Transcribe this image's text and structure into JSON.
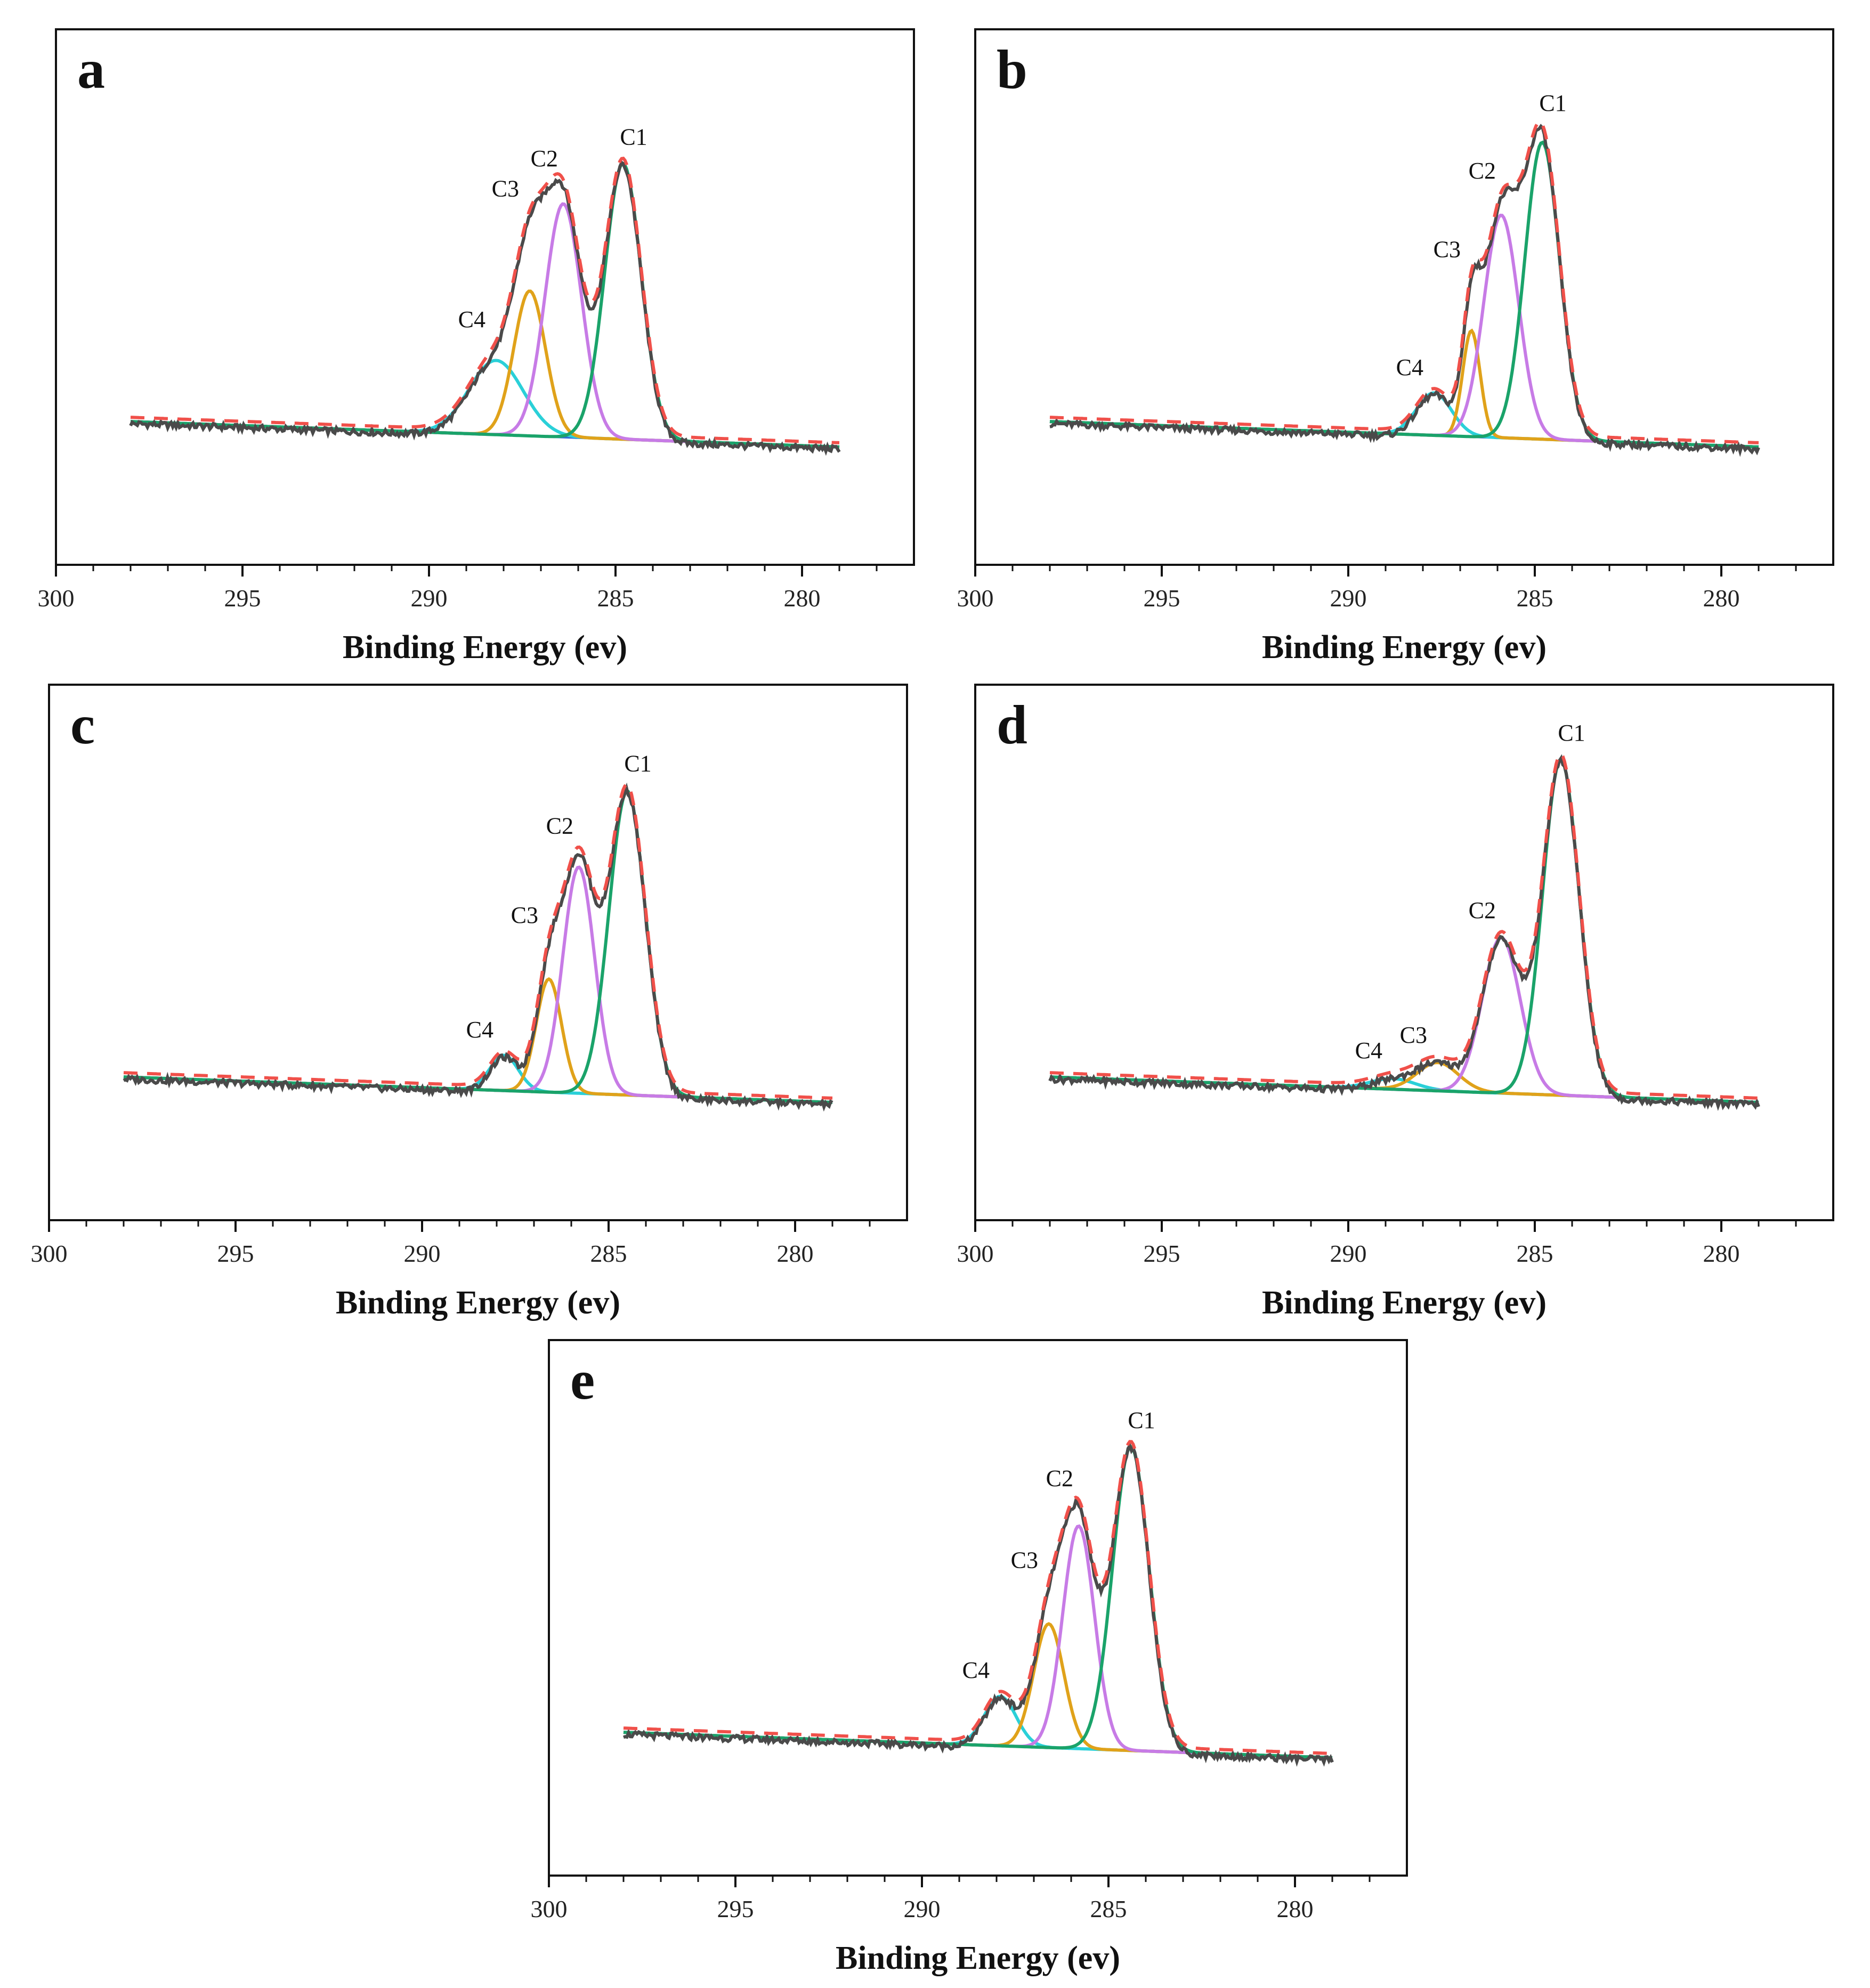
{
  "chart_data": [
    {
      "type": "line",
      "panel": "a",
      "xlabel": "Binding Energy (ev)",
      "xlim": [
        300,
        277
      ],
      "xticks": [
        300,
        295,
        290,
        285,
        280
      ],
      "data_range": [
        298,
        279
      ],
      "baseline": {
        "start": 0.072,
        "end": 0.0
      },
      "peaks": [
        {
          "name": "C1",
          "center": 284.8,
          "height": 0.78,
          "fwhm": 1.15
        },
        {
          "name": "C2",
          "center": 286.4,
          "height": 0.66,
          "fwhm": 1.15
        },
        {
          "name": "C3",
          "center": 287.3,
          "height": 0.41,
          "fwhm": 1.0
        },
        {
          "name": "C4",
          "center": 288.2,
          "height": 0.21,
          "fwhm": 1.7
        }
      ]
    },
    {
      "type": "line",
      "panel": "b",
      "xlabel": "Binding Energy (ev)",
      "xlim": [
        300,
        277
      ],
      "xticks": [
        300,
        295,
        290,
        285,
        280
      ],
      "data_range": [
        298,
        279
      ],
      "baseline": {
        "start": 0.072,
        "end": 0.0
      },
      "peaks": [
        {
          "name": "C1",
          "center": 284.8,
          "height": 0.84,
          "fwhm": 1.1
        },
        {
          "name": "C2",
          "center": 285.9,
          "height": 0.63,
          "fwhm": 1.1
        },
        {
          "name": "C3",
          "center": 286.7,
          "height": 0.3,
          "fwhm": 0.55
        },
        {
          "name": "C4",
          "center": 287.7,
          "height": 0.12,
          "fwhm": 1.1
        }
      ]
    },
    {
      "type": "line",
      "panel": "c",
      "xlabel": "Binding Energy (ev)",
      "xlim": [
        300,
        277
      ],
      "xticks": [
        300,
        295,
        290,
        285,
        280
      ],
      "data_range": [
        298,
        279
      ],
      "baseline": {
        "start": 0.072,
        "end": 0.0
      },
      "peaks": [
        {
          "name": "C1",
          "center": 284.5,
          "height": 0.86,
          "fwhm": 1.15
        },
        {
          "name": "C2",
          "center": 285.8,
          "height": 0.64,
          "fwhm": 1.0
        },
        {
          "name": "C3",
          "center": 286.6,
          "height": 0.32,
          "fwhm": 0.8
        },
        {
          "name": "C4",
          "center": 287.8,
          "height": 0.1,
          "fwhm": 0.9
        }
      ]
    },
    {
      "type": "line",
      "panel": "d",
      "xlabel": "Binding Energy (ev)",
      "xlim": [
        300,
        277
      ],
      "xticks": [
        300,
        295,
        290,
        285,
        280
      ],
      "data_range": [
        298,
        279
      ],
      "baseline": {
        "start": 0.072,
        "end": 0.0
      },
      "peaks": [
        {
          "name": "C1",
          "center": 284.3,
          "height": 0.95,
          "fwhm": 1.15
        },
        {
          "name": "C2",
          "center": 285.9,
          "height": 0.44,
          "fwhm": 1.2
        },
        {
          "name": "C3",
          "center": 287.6,
          "height": 0.08,
          "fwhm": 1.3
        },
        {
          "name": "C4",
          "center": 288.8,
          "height": 0.03,
          "fwhm": 1.4
        }
      ]
    },
    {
      "type": "line",
      "panel": "e",
      "xlabel": "Binding Energy (ev)",
      "xlim": [
        300,
        277
      ],
      "xticks": [
        300,
        295,
        290,
        285,
        280
      ],
      "data_range": [
        298,
        279
      ],
      "baseline": {
        "start": 0.072,
        "end": 0.0
      },
      "peaks": [
        {
          "name": "C1",
          "center": 284.4,
          "height": 0.86,
          "fwhm": 1.15
        },
        {
          "name": "C2",
          "center": 285.8,
          "height": 0.63,
          "fwhm": 1.0
        },
        {
          "name": "C3",
          "center": 286.6,
          "height": 0.35,
          "fwhm": 0.95
        },
        {
          "name": "C4",
          "center": 287.9,
          "height": 0.14,
          "fwhm": 1.0
        }
      ]
    }
  ],
  "colors": {
    "experimental": "#4a4a4a",
    "envelope": "#f0504a",
    "baseline": "#2f6fd6",
    "C1": "#1aa36a",
    "C2": "#c77be6",
    "C3": "#e0a21a",
    "C4": "#2ad0d8",
    "axis": "#111111"
  }
}
